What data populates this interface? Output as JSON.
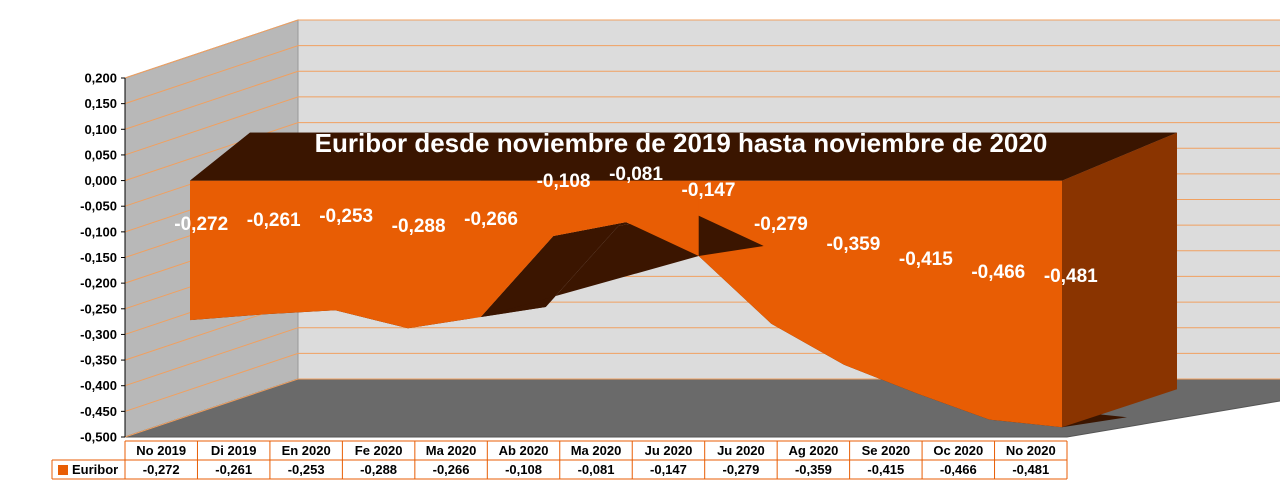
{
  "chart_data": {
    "type": "area",
    "title": "Euribor desde noviembre de 2019 hasta noviembre de 2020",
    "categories": [
      "No 2019",
      "Di 2019",
      "En 2020",
      "Fe 2020",
      "Ma 2020",
      "Ab 2020",
      "Ma 2020",
      "Ju 2020",
      "Ju 2020",
      "Ag 2020",
      "Se 2020",
      "Oc 2020",
      "No 2020"
    ],
    "series": [
      {
        "name": "Euribor",
        "values": [
          -0.272,
          -0.261,
          -0.253,
          -0.288,
          -0.266,
          -0.108,
          -0.081,
          -0.147,
          -0.279,
          -0.359,
          -0.415,
          -0.466,
          -0.481
        ],
        "labels": [
          "-0,272",
          "-0,261",
          "-0,253",
          "-0,288",
          "-0,266",
          "-0,108",
          "-0,081",
          "-0,147",
          "-0,279",
          "-0,359",
          "-0,415",
          "-0,466",
          "-0,481"
        ]
      }
    ],
    "y_ticks": [
      "0,200",
      "0,150",
      "0,100",
      "0,050",
      "0,000",
      "-0,050",
      "-0,100",
      "-0,150",
      "-0,200",
      "-0,250",
      "-0,300",
      "-0,350",
      "-0,400",
      "-0,450",
      "-0,500"
    ],
    "ylim": [
      -0.5,
      0.2
    ],
    "data_table": true,
    "colors": {
      "series": "#e85d04",
      "series_dark": "#8a3400",
      "series_shadow": "#3b1500",
      "back_wall": "#dcdcdc",
      "side_wall": "#b8b8b8",
      "floor": "#6a6a6a",
      "grid": "#f0a060"
    }
  }
}
